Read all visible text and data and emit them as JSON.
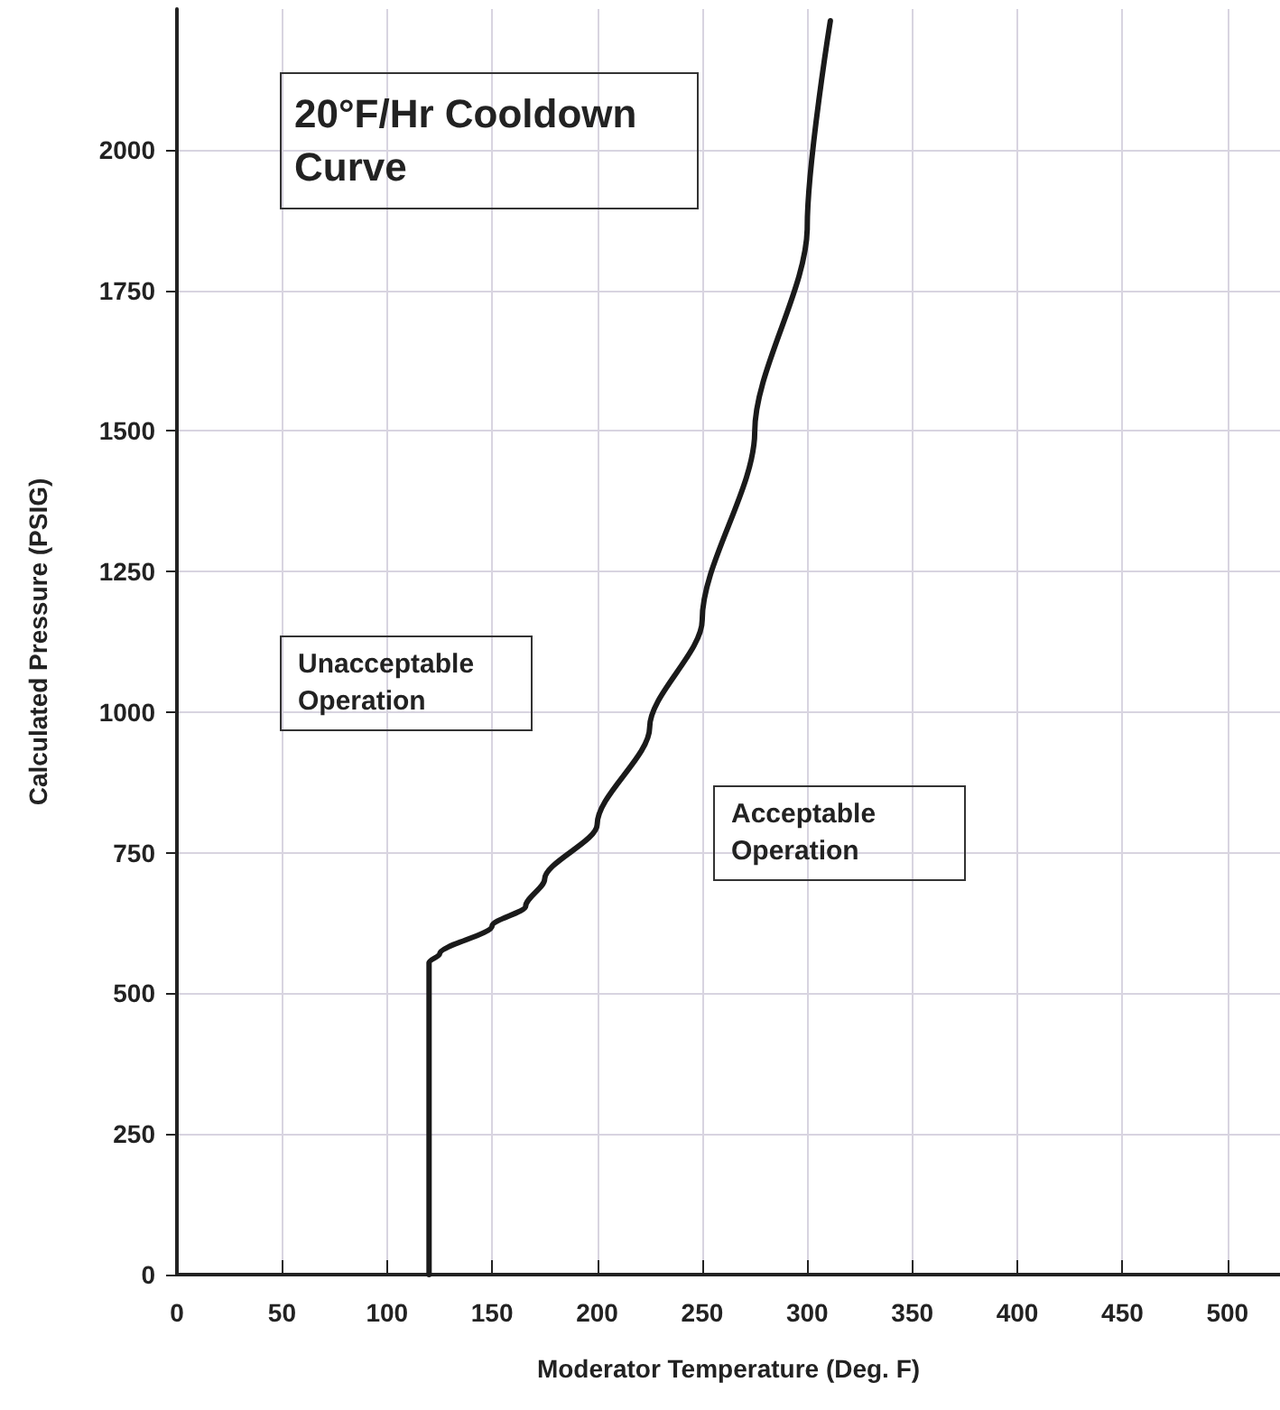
{
  "chart_data": {
    "type": "line",
    "title": "20°F/Hr Cooldown Curve",
    "xlabel": "Moderator Temperature (Deg. F)",
    "ylabel": "Calculated Pressure (PSIG)",
    "annotations": [
      "Unacceptable Operation",
      "Acceptable Operation"
    ],
    "series": [
      {
        "color": "#1a1a1a",
        "x": [
          120,
          120,
          125,
          150,
          166,
          175,
          200,
          225,
          250,
          275,
          300,
          311
        ],
        "values": [
          0,
          555,
          570,
          620,
          655,
          703,
          800,
          973,
          1164,
          1498,
          1863,
          2229
        ]
      }
    ],
    "xlim": [
      0,
      525
    ],
    "xticks": [
      0,
      50,
      100,
      150,
      200,
      250,
      300,
      350,
      400,
      450,
      500
    ],
    "ylim": [
      0,
      2250
    ],
    "yticks": [
      0,
      250,
      500,
      750,
      1000,
      1250,
      1500,
      1750,
      2000
    ],
    "grid": true,
    "marker": "none",
    "line_style": "solid"
  }
}
